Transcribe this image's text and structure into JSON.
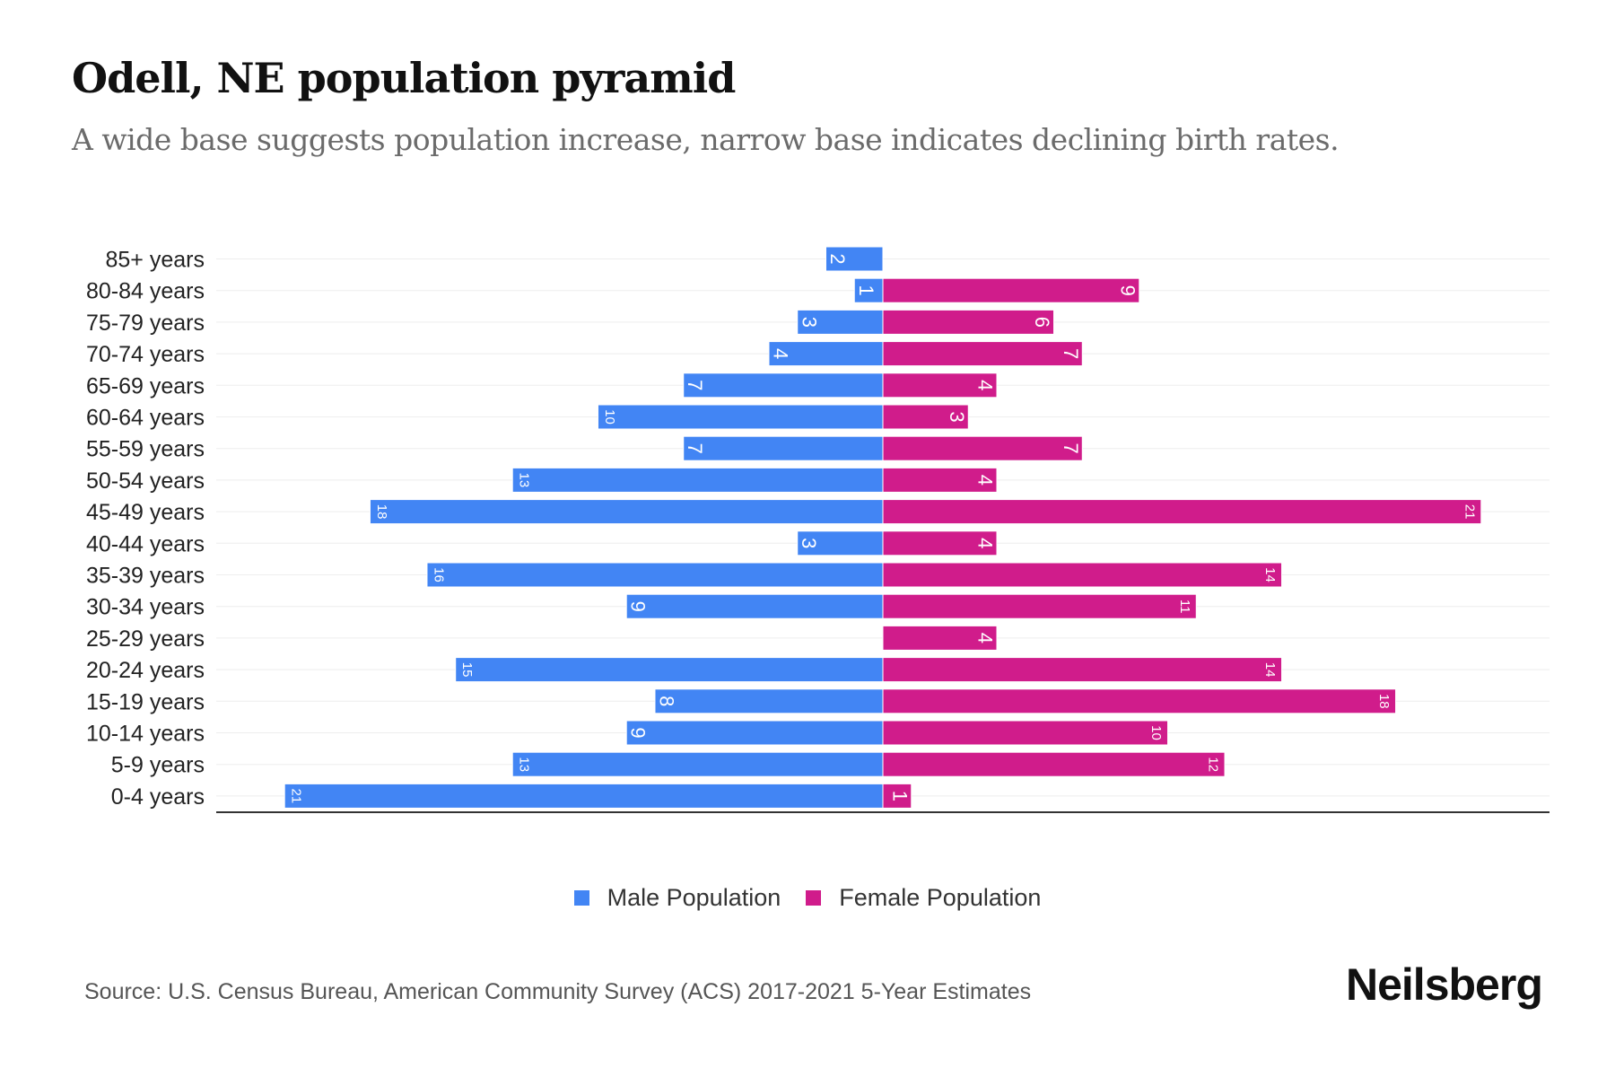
{
  "header": {
    "title": "Odell, NE population pyramid",
    "subtitle": "A wide base suggests population increase, narrow base indicates declining birth rates."
  },
  "chart_data": {
    "type": "bar",
    "orientation": "horizontal-pyramid",
    "categories": [
      "85+ years",
      "80-84 years",
      "75-79 years",
      "70-74 years",
      "65-69 years",
      "60-64 years",
      "55-59 years",
      "50-54 years",
      "45-49 years",
      "40-44 years",
      "35-39 years",
      "30-34 years",
      "25-29 years",
      "20-24 years",
      "15-19 years",
      "10-14 years",
      "5-9 years",
      "0-4 years"
    ],
    "series": [
      {
        "name": "Male Population",
        "color": "#4285f4",
        "values": [
          2,
          1,
          3,
          4,
          7,
          10,
          7,
          13,
          18,
          3,
          16,
          9,
          0,
          15,
          8,
          9,
          13,
          21
        ]
      },
      {
        "name": "Female Population",
        "color": "#d01c8b",
        "values": [
          0,
          9,
          6,
          7,
          4,
          3,
          7,
          4,
          21,
          4,
          14,
          11,
          4,
          14,
          18,
          10,
          12,
          1
        ]
      }
    ],
    "xlim": [
      -23.4,
      23.4
    ],
    "legend": "bottom-center",
    "grid": true
  },
  "legend": {
    "male": "Male Population",
    "female": "Female Population"
  },
  "footer": {
    "source": "Source: U.S. Census Bureau, American Community Survey (ACS) 2017-2021 5-Year Estimates",
    "logo": "Neilsberg"
  }
}
